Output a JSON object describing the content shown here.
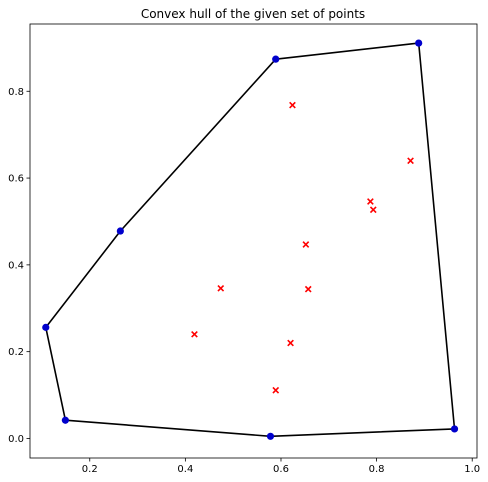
{
  "chart_data": {
    "type": "scatter",
    "title": "Convex hull of the given set of points",
    "xlabel": "",
    "ylabel": "",
    "xlim": [
      0.075,
      1.01
    ],
    "ylim": [
      -0.045,
      0.955
    ],
    "xticks": [
      0.2,
      0.4,
      0.6,
      0.8,
      1.0
    ],
    "xtick_labels": [
      "0.2",
      "0.4",
      "0.6",
      "0.8",
      "1.0"
    ],
    "yticks": [
      0.0,
      0.2,
      0.4,
      0.6,
      0.8
    ],
    "ytick_labels": [
      "0.0",
      "0.2",
      "0.4",
      "0.6",
      "0.8"
    ],
    "grid": false,
    "series": [
      {
        "role": "hull-vertices",
        "marker": "circle",
        "color": "#0000cc",
        "points": [
          {
            "x": 0.108,
            "y": 0.256
          },
          {
            "x": 0.149,
            "y": 0.042
          },
          {
            "x": 0.578,
            "y": 0.005
          },
          {
            "x": 0.963,
            "y": 0.022
          },
          {
            "x": 0.888,
            "y": 0.911
          },
          {
            "x": 0.589,
            "y": 0.874
          },
          {
            "x": 0.264,
            "y": 0.478
          }
        ]
      },
      {
        "role": "hull-edges",
        "marker": "line",
        "color": "#000000",
        "closed": true
      },
      {
        "role": "interior-points",
        "marker": "x",
        "color": "#ff0000",
        "points": [
          {
            "x": 0.624,
            "y": 0.768
          },
          {
            "x": 0.871,
            "y": 0.64
          },
          {
            "x": 0.787,
            "y": 0.546
          },
          {
            "x": 0.793,
            "y": 0.527
          },
          {
            "x": 0.652,
            "y": 0.447
          },
          {
            "x": 0.474,
            "y": 0.346
          },
          {
            "x": 0.657,
            "y": 0.344
          },
          {
            "x": 0.419,
            "y": 0.24
          },
          {
            "x": 0.62,
            "y": 0.22
          },
          {
            "x": 0.589,
            "y": 0.111
          }
        ]
      }
    ]
  }
}
